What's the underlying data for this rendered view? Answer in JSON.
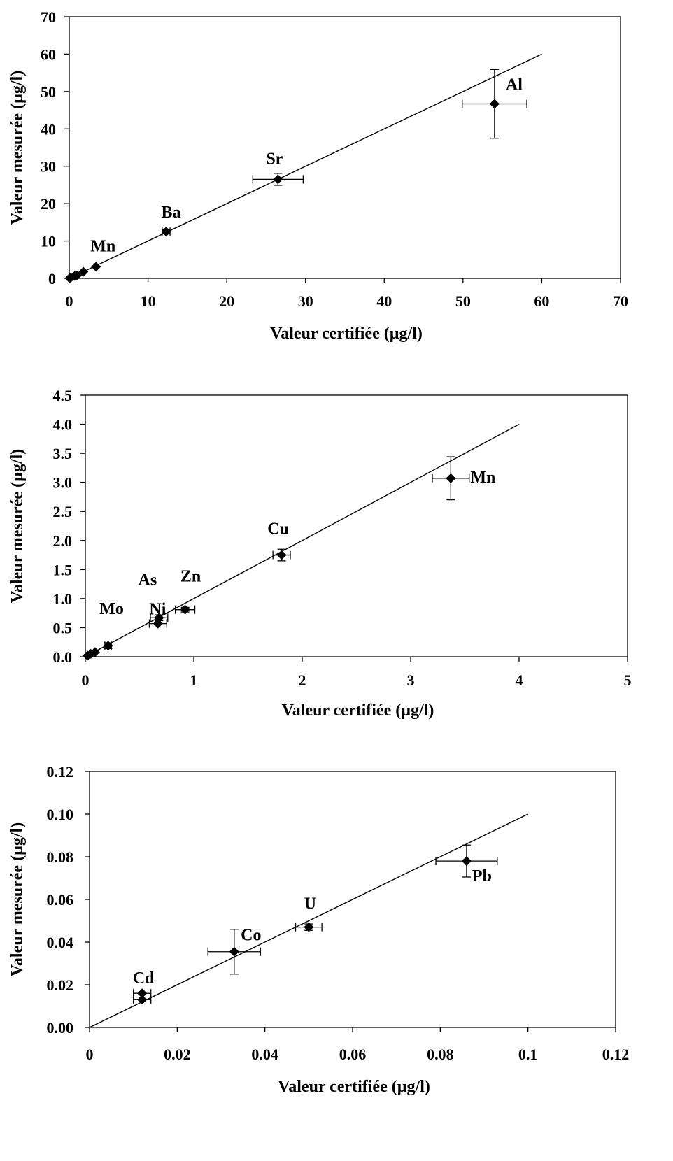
{
  "chart_data": [
    {
      "type": "scatter",
      "title": "",
      "xlabel": "Valeur certifiée (µg/l)",
      "ylabel": "Valeur mesurée (µg/l)",
      "xlim": [
        0,
        70
      ],
      "ylim": [
        0,
        70
      ],
      "xticks": [
        "0",
        "10",
        "20",
        "30",
        "40",
        "50",
        "60",
        "70"
      ],
      "yticks": [
        "0",
        "10",
        "20",
        "30",
        "40",
        "50",
        "60",
        "70"
      ],
      "grid": false,
      "reference_line": {
        "x": [
          0,
          60
        ],
        "y": [
          0,
          60
        ]
      },
      "points": [
        {
          "x": 0.05,
          "y": 0.05,
          "xerr": 0.0,
          "yerr": 0.0,
          "label": ""
        },
        {
          "x": 0.2,
          "y": 0.2,
          "xerr": 0.0,
          "yerr": 0.0,
          "label": ""
        },
        {
          "x": 0.7,
          "y": 0.65,
          "xerr": 0.0,
          "yerr": 0.0,
          "label": ""
        },
        {
          "x": 1.0,
          "y": 0.8,
          "xerr": 0.0,
          "yerr": 0.0,
          "label": ""
        },
        {
          "x": 1.8,
          "y": 1.75,
          "xerr": 0.0,
          "yerr": 0.0,
          "label": ""
        },
        {
          "x": 3.4,
          "y": 3.1,
          "xerr": 0.0,
          "yerr": 0.0,
          "label": "Mn"
        },
        {
          "x": 12.3,
          "y": 12.5,
          "xerr": 0.5,
          "yerr": 0.5,
          "label": "Ba"
        },
        {
          "x": 26.5,
          "y": 26.5,
          "xerr": 3.2,
          "yerr": 1.6,
          "label": "Sr"
        },
        {
          "x": 54.0,
          "y": 46.7,
          "xerr": 4.1,
          "yerr": 9.2,
          "label": "Al"
        }
      ]
    },
    {
      "type": "scatter",
      "title": "",
      "xlabel": "Valeur certifiée (µg/l)",
      "ylabel": "Valeur mesurée (µg/l)",
      "xlim": [
        0,
        5
      ],
      "ylim": [
        0,
        4.5
      ],
      "xticks": [
        "0",
        "1",
        "2",
        "3",
        "4",
        "5"
      ],
      "yticks": [
        "0.0",
        "0.5",
        "1.0",
        "1.5",
        "2.0",
        "2.5",
        "3.0",
        "3.5",
        "4.0",
        "4.5"
      ],
      "grid": false,
      "reference_line": {
        "x": [
          0,
          4
        ],
        "y": [
          0,
          4
        ]
      },
      "points": [
        {
          "x": 0.02,
          "y": 0.02,
          "xerr": 0.0,
          "yerr": 0.0,
          "label": ""
        },
        {
          "x": 0.05,
          "y": 0.05,
          "xerr": 0.0,
          "yerr": 0.0,
          "label": ""
        },
        {
          "x": 0.09,
          "y": 0.08,
          "xerr": 0.0,
          "yerr": 0.0,
          "label": ""
        },
        {
          "x": 0.21,
          "y": 0.19,
          "xerr": 0.03,
          "yerr": 0.05,
          "label": "Mo"
        },
        {
          "x": 0.67,
          "y": 0.57,
          "xerr": 0.08,
          "yerr": 0.0,
          "label": "As"
        },
        {
          "x": 0.68,
          "y": 0.67,
          "xerr": 0.08,
          "yerr": 0.05,
          "label": "Ni"
        },
        {
          "x": 0.92,
          "y": 0.81,
          "xerr": 0.09,
          "yerr": 0.04,
          "label": "Zn"
        },
        {
          "x": 1.81,
          "y": 1.75,
          "xerr": 0.08,
          "yerr": 0.1,
          "label": "Cu"
        },
        {
          "x": 3.37,
          "y": 3.07,
          "xerr": 0.17,
          "yerr": 0.37,
          "label": "Mn"
        }
      ]
    },
    {
      "type": "scatter",
      "title": "",
      "xlabel": "Valeur certifiée (µg/l)",
      "ylabel": "Valeur mesurée (µg/l)",
      "xlim": [
        0,
        0.12
      ],
      "ylim": [
        0,
        0.12
      ],
      "xticks": [
        "0",
        "0.02",
        "0.04",
        "0.06",
        "0.08",
        "0.1",
        "0.12"
      ],
      "yticks": [
        "0.00",
        "0.02",
        "0.04",
        "0.06",
        "0.08",
        "0.10",
        "0.12"
      ],
      "grid": false,
      "reference_line": {
        "x": [
          0,
          0.1
        ],
        "y": [
          0,
          0.1
        ]
      },
      "points": [
        {
          "x": 0.012,
          "y": 0.016,
          "xerr": 0.002,
          "yerr": 0.0,
          "label": "Cd"
        },
        {
          "x": 0.012,
          "y": 0.013,
          "xerr": 0.002,
          "yerr": 0.0,
          "label": ""
        },
        {
          "x": 0.033,
          "y": 0.0355,
          "xerr": 0.006,
          "yerr": 0.0105,
          "label": "Co"
        },
        {
          "x": 0.05,
          "y": 0.047,
          "xerr": 0.003,
          "yerr": 0.0015,
          "label": "U"
        },
        {
          "x": 0.086,
          "y": 0.078,
          "xerr": 0.007,
          "yerr": 0.0075,
          "label": "Pb"
        }
      ]
    }
  ]
}
